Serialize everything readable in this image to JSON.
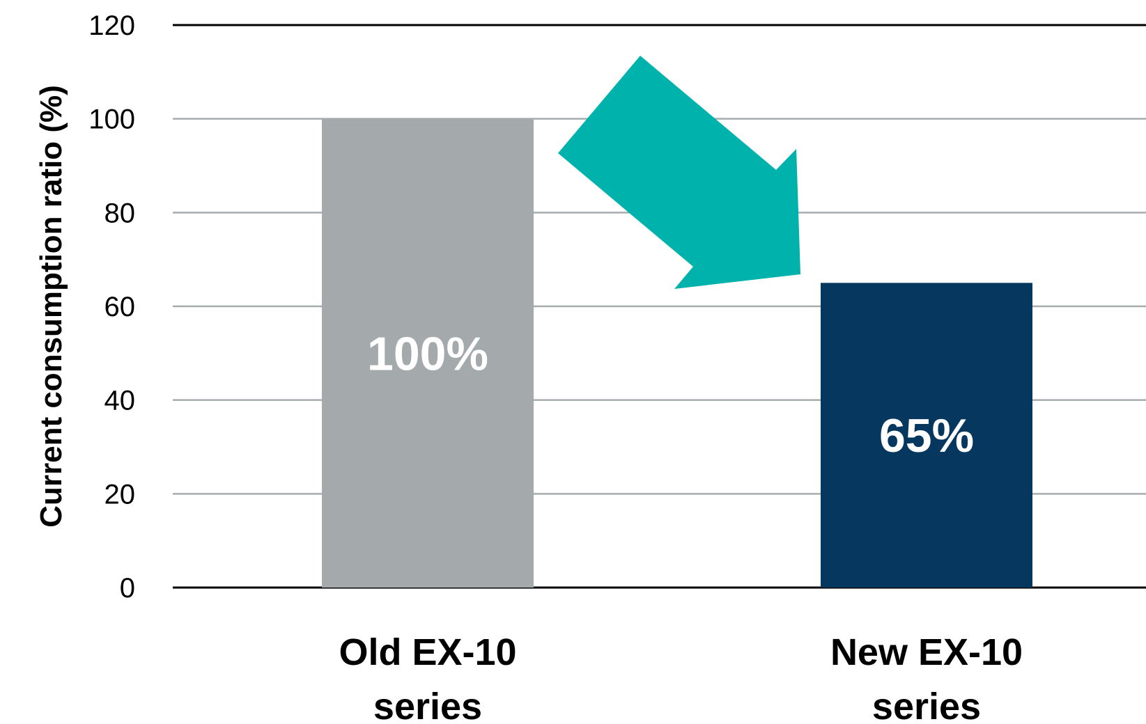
{
  "chart_data": {
    "type": "bar",
    "categories": [
      [
        "Old EX-10",
        "series"
      ],
      [
        "New EX-10",
        "series"
      ]
    ],
    "values": [
      100,
      65
    ],
    "data_labels": [
      "100%",
      "65%"
    ],
    "bar_colors": [
      "#A4AAAC",
      "#06375E"
    ],
    "title": "",
    "xlabel": "",
    "ylabel": "Current consumption ratio (%)",
    "ylim": [
      0,
      120
    ],
    "yticks": [
      0,
      20,
      40,
      60,
      80,
      100,
      120
    ],
    "grid": true,
    "legend": "none",
    "annotation": {
      "type": "arrow",
      "direction": "down-right",
      "color": "#00B2AC",
      "from_category": "Old EX-10",
      "to_category": "New EX-10"
    }
  }
}
